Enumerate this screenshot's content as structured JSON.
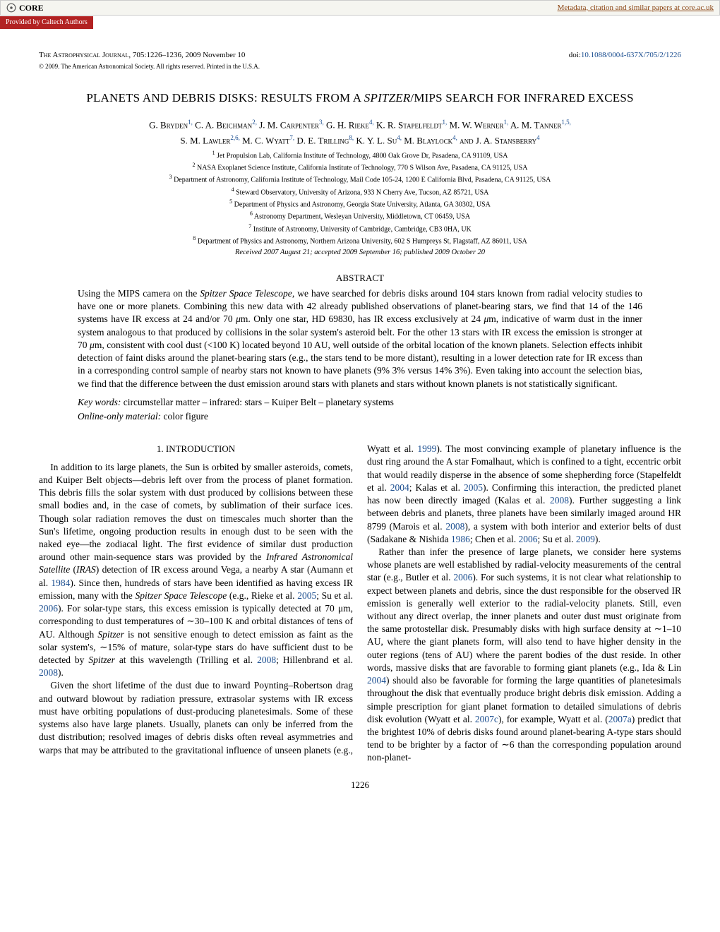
{
  "core": {
    "brand": "CORE",
    "link": "Metadata, citation and similar papers at core.ac.uk",
    "provided": "Provided by Caltech Authors"
  },
  "header": {
    "journal": "The Astrophysical Journal",
    "citation": ", 705:1226–1236, 2009 November 10",
    "doi_label": "doi:",
    "doi": "10.1088/0004-637X/705/2/1226",
    "copyright": "© 2009. The American Astronomical Society. All rights reserved. Printed in the U.S.A."
  },
  "title_pre": "PLANETS AND DEBRIS DISKS: RESULTS FROM A ",
  "title_ital": "SPITZER",
  "title_post": "/MIPS SEARCH FOR INFRARED EXCESS",
  "authors_line1": "G. Bryden¹, C. A. Beichman², J. M. Carpenter³, G. H. Rieke⁴, K. R. Stapelfeldt¹, M. W. Werner¹, A. M. Tanner¹,⁵,",
  "authors_line2": "S. M. Lawler²,⁶, M. C. Wyatt⁷, D. E. Trilling⁸, K. Y. L. Su⁴, M. Blaylock⁴, and J. A. Stansberry⁴",
  "affils": [
    "¹ Jet Propulsion Lab, California Institute of Technology, 4800 Oak Grove Dr, Pasadena, CA 91109, USA",
    "² NASA Exoplanet Science Institute, California Institute of Technology, 770 S Wilson Ave, Pasadena, CA 91125, USA",
    "³ Department of Astronomy, California Institute of Technology, Mail Code 105-24, 1200 E California Blvd, Pasadena, CA 91125, USA",
    "⁴ Steward Observatory, University of Arizona, 933 N Cherry Ave, Tucson, AZ 85721, USA",
    "⁵ Department of Physics and Astronomy, Georgia State University, Atlanta, GA 30302, USA",
    "⁶ Astronomy Department, Wesleyan University, Middletown, CT 06459, USA",
    "⁷ Institute of Astronomy, University of Cambridge, Cambridge, CB3 0HA, UK",
    "⁸ Department of Physics and Astronomy, Northern Arizona University, 602 S Humpreys St, Flagstaff, AZ 86011, USA"
  ],
  "received": "Received 2007 August 21; accepted 2009 September 16; published 2009 October 20",
  "abstract_heading": "ABSTRACT",
  "abstract": "Using the MIPS camera on the Spitzer Space Telescope, we have searched for debris disks around 104 stars known from radial velocity studies to have one or more planets. Combining this new data with 42 already published observations of planet-bearing stars, we find that 14 of the 146 systems have IR excess at 24 and/or 70 μm. Only one star, HD 69830, has IR excess exclusively at 24 μm, indicative of warm dust in the inner system analogous to that produced by collisions in the solar system's asteroid belt. For the other 13 stars with IR excess the emission is stronger at 70 μm, consistent with cool dust (<100 K) located beyond 10 AU, well outside of the orbital location of the known planets. Selection effects inhibit detection of faint disks around the planet-bearing stars (e.g., the stars tend to be more distant), resulting in a lower detection rate for IR excess than in a corresponding control sample of nearby stars not known to have planets (9%    3% versus 14%    3%). Even taking into account the selection bias, we find that the difference between the dust emission around stars with planets and stars without known planets is not statistically significant.",
  "keywords_label": "Key words:",
  "keywords": "  circumstellar matter – infrared: stars – Kuiper Belt – planetary systems",
  "online_label": "Online-only material:",
  "online": " color figure",
  "intro_heading": "1. INTRODUCTION",
  "body_html": "In addition to its large planets, the Sun is orbited by smaller asteroids, comets, and Kuiper Belt objects—debris left over from the process of planet formation. This debris fills the solar system with dust produced by collisions between these small bodies and, in the case of comets, by sublimation of their surface ices. Though solar radiation removes the dust on timescales much shorter than the Sun's lifetime, ongoing production results in enough dust to be seen with the naked eye—the zodiacal light. The first evidence of similar dust production around other main-sequence stars was provided by the <span class='ital'>Infrared Astronomical Satellite</span> (<span class='ital'>IRAS</span>) detection of IR excess around Vega, a nearby A star (Aumann et al. <span class='cite'>1984</span>). Since then, hundreds of stars have been identified as having excess IR emission, many with the <span class='ital'>Spitzer Space Telescope</span> (e.g., Rieke et al. <span class='cite'>2005</span>; Su et al. <span class='cite'>2006</span>). For solar-type stars, this excess emission is typically detected at 70 μm, corresponding to dust temperatures of ∼30–100 K and orbital distances of tens of AU. Although <span class='ital'>Spitzer</span> is not sensitive enough to detect emission as faint as the solar system's, ∼15% of mature, solar-type stars do have sufficient dust to be detected by <span class='ital'>Spitzer</span> at this wavelength (Trilling et al. <span class='cite'>2008</span>; Hillenbrand et al. <span class='cite'>2008</span>).|Given the short lifetime of the dust due to inward Poynting–Robertson drag and outward blowout by radiation pressure, extrasolar systems with IR excess must have orbiting populations of dust-producing planetesimals. Some of these systems also have large planets. Usually, planets can only be inferred from the dust distribution; resolved images of debris disks often reveal asymmetries and warps that may be attributed to the gravitational influence of unseen planets (e.g., Wyatt et al. <span class='cite'>1999</span>). The most convincing example of planetary influence is the dust ring around the A star Fomalhaut, which is confined to a tight, eccentric orbit that would readily disperse in the absence of some shepherding force (Stapelfeldt et al. <span class='cite'>2004</span>; Kalas et al. <span class='cite'>2005</span>). Confirming this interaction, the predicted planet has now been directly imaged (Kalas et al. <span class='cite'>2008</span>). Further suggesting a link between debris and planets, three planets have been similarly imaged around HR 8799 (Marois et al. <span class='cite'>2008</span>), a system with both interior and exterior belts of dust (Sadakane & Nishida <span class='cite'>1986</span>; Chen et al. <span class='cite'>2006</span>; Su et al. <span class='cite'>2009</span>).|Rather than infer the presence of large planets, we consider here systems whose planets are well established by radial-velocity measurements of the central star (e.g., Butler et al. <span class='cite'>2006</span>). For such systems, it is not clear what relationship to expect between planets and debris, since the dust responsible for the observed IR emission is generally well exterior to the radial-velocity planets. Still, even without any direct overlap, the inner planets and outer dust must originate from the same protostellar disk. Presumably disks with high surface density at ∼1–10 AU, where the giant planets form, will also tend to have higher density in the outer regions (tens of AU) where the parent bodies of the dust reside. In other words, massive disks that are favorable to forming giant planets (e.g., Ida & Lin <span class='cite'>2004</span>) should also be favorable for forming the large quantities of planetesimals throughout the disk that eventually produce bright debris disk emission. Adding a simple prescription for giant planet formation to detailed simulations of debris disk evolution (Wyatt et al. <span class='cite'>2007c</span>), for example, Wyatt et al. (<span class='cite'>2007a</span>) predict that the brightest 10% of debris disks found around planet-bearing A-type stars should tend to be brighter by a factor of ∼6 than the corresponding population around non-planet-",
  "pagenum": "1226",
  "colors": {
    "link": "#1a4d8f",
    "banner_bg": "#f5f5f0",
    "provided_bg": "#b22222",
    "core_brown": "#8b4513"
  }
}
